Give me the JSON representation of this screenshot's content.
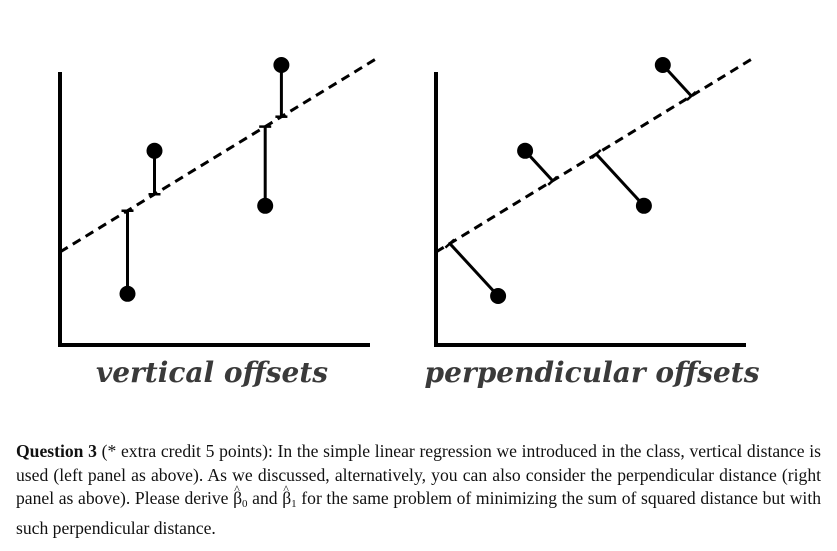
{
  "figure": {
    "left_panel": {
      "label": "vertical offsets",
      "offset_type": "vertical",
      "line": {
        "intercept": 0.2,
        "slope": 0.75
      },
      "points": [
        {
          "x": 0.25,
          "y": 0.01
        },
        {
          "x": 0.35,
          "y": 0.66
        },
        {
          "x": 0.76,
          "y": 0.41
        },
        {
          "x": 0.82,
          "y": 1.05
        }
      ]
    },
    "right_panel": {
      "label": "perpendicular offsets",
      "offset_type": "perpendicular",
      "line": {
        "intercept": 0.2,
        "slope": 0.75
      },
      "points": [
        {
          "x": 0.23,
          "y": 0.0
        },
        {
          "x": 0.33,
          "y": 0.66
        },
        {
          "x": 0.77,
          "y": 0.41
        },
        {
          "x": 0.84,
          "y": 1.05
        }
      ]
    }
  },
  "question": {
    "title": "Question 3",
    "text_before_b0": " (* extra credit 5 points): In the simple linear regression we introduced in the class, vertical distance is used (left panel as above). As we discussed, alternatively, you can also consider the perpendicular distance (right panel as above). Please derive ",
    "beta_symbol": "β",
    "b0_subscript": "0",
    "between": " and ",
    "b1_subscript": "1",
    "text_after_b1": " for the same problem of minimizing the sum of squared distance but with such perpendicular distance."
  }
}
